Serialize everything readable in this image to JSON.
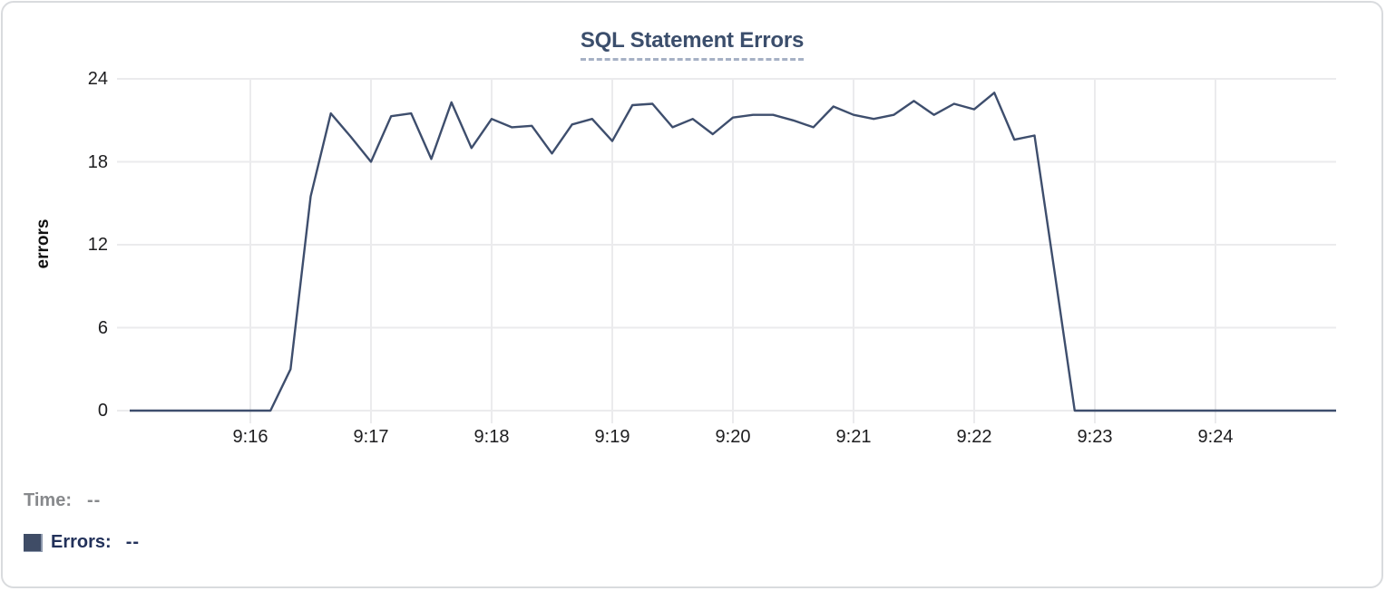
{
  "chart": {
    "title": "SQL Statement Errors",
    "ylabel": "errors"
  },
  "legend": {
    "time_label": "Time:",
    "time_value": "--",
    "errors_label": "Errors:",
    "errors_value": "--",
    "swatch_color": "#3f4c66"
  },
  "colors": {
    "line": "#3e4e6d",
    "title": "#3b4e6c",
    "title_underline": "#a6b1c5",
    "grid": "#ebebed",
    "tick_text": "#1d1d1f",
    "legend_time_text": "#87898c",
    "legend_errors_text": "#22315a",
    "card_border": "#d9dbde"
  },
  "chart_data": {
    "type": "line",
    "title": "SQL Statement Errors",
    "xlabel": "",
    "ylabel": "errors",
    "series_name": "Errors",
    "grid": true,
    "legend_position": "bottom-left",
    "line_color": "#3e4e6d",
    "y_ticks": [
      0,
      6,
      12,
      18,
      24
    ],
    "ylim": [
      0,
      24
    ],
    "x_tick_labels": [
      "9:16",
      "9:17",
      "9:18",
      "9:19",
      "9:20",
      "9:21",
      "9:22",
      "9:23",
      "9:24"
    ],
    "x_start_time": "9:15:00",
    "x_end_time": "9:25:00",
    "interval_seconds": 10,
    "values": [
      0,
      0,
      0,
      0,
      0,
      0,
      0,
      0,
      3,
      15.5,
      21.5,
      19.8,
      18,
      21.3,
      21.5,
      18.2,
      22.3,
      19,
      21.1,
      20.5,
      20.6,
      18.6,
      20.7,
      21.1,
      19.5,
      22.1,
      22.2,
      20.5,
      21.1,
      20,
      21.2,
      21.4,
      21.4,
      21,
      20.5,
      22,
      21.4,
      21.1,
      21.4,
      22.4,
      21.4,
      22.2,
      21.8,
      23,
      19.6,
      19.9,
      10,
      0,
      0,
      0,
      0,
      0,
      0,
      0,
      0,
      0,
      0,
      0,
      0,
      0,
      0
    ]
  }
}
